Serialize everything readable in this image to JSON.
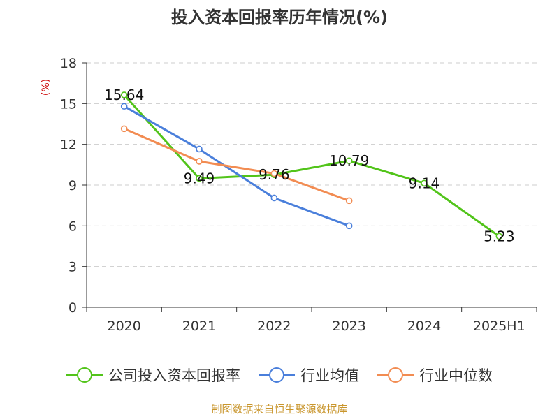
{
  "chart_data": {
    "type": "line",
    "title": "投入资本回报率历年情况(%)",
    "ylabel": "(%)",
    "xlabel": "",
    "categories": [
      "2020",
      "2021",
      "2022",
      "2023",
      "2024",
      "2025H1"
    ],
    "ylim": [
      0,
      18
    ],
    "yticks": [
      0,
      3,
      6,
      9,
      12,
      15,
      18
    ],
    "grid": true,
    "legend_position": "bottom",
    "series": [
      {
        "name": "公司投入资本回报率",
        "color": "#52c41a",
        "values": [
          15.64,
          9.49,
          9.76,
          10.79,
          9.14,
          5.23
        ],
        "labels": [
          "15.64",
          "9.49",
          "9.76",
          "10.79",
          "9.14",
          "5.23"
        ]
      },
      {
        "name": "行业均值",
        "color": "#4a7fdb",
        "values": [
          14.8,
          11.65,
          8.05,
          6.0,
          null,
          null
        ]
      },
      {
        "name": "行业中位数",
        "color": "#f28c52",
        "values": [
          13.15,
          10.75,
          9.85,
          7.85,
          null,
          null
        ]
      }
    ]
  },
  "footer": {
    "source": "制图数据来自恒生聚源数据库"
  }
}
